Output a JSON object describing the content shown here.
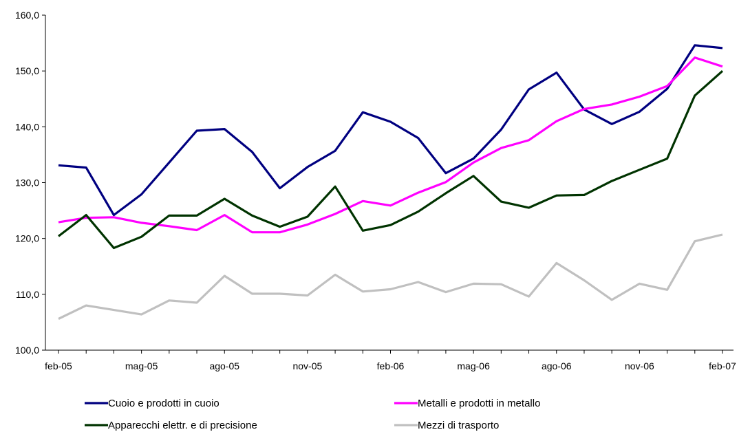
{
  "chart_data": {
    "type": "line",
    "title": "",
    "xlabel": "",
    "ylabel": "",
    "ylim": [
      100,
      160
    ],
    "yticks": [
      "100,0",
      "110,0",
      "120,0",
      "130,0",
      "140,0",
      "150,0",
      "160,0"
    ],
    "grid": false,
    "legend_position": "bottom",
    "x": [
      "feb-05",
      "mar-05",
      "apr-05",
      "mag-05",
      "giu-05",
      "lug-05",
      "ago-05",
      "set-05",
      "ott-05",
      "nov-05",
      "dic-05",
      "gen-06",
      "feb-06",
      "mar-06",
      "apr-06",
      "mag-06",
      "giu-06",
      "lug-06",
      "ago-06",
      "set-06",
      "ott-06",
      "nov-06",
      "dic-06",
      "gen-07",
      "feb-07"
    ],
    "xtick_labels": [
      "feb-05",
      "mag-05",
      "ago-05",
      "nov-05",
      "feb-06",
      "mag-06",
      "ago-06",
      "nov-06",
      "feb-07"
    ],
    "series": [
      {
        "name": "Cuoio e prodotti in cuoio",
        "color": "#000080",
        "values": [
          133.1,
          132.7,
          124.2,
          127.9,
          133.6,
          139.3,
          139.6,
          135.5,
          129.0,
          132.8,
          135.7,
          142.6,
          140.9,
          138.0,
          131.7,
          134.3,
          139.5,
          146.7,
          149.7,
          143.1,
          140.5,
          142.7,
          146.8,
          154.6,
          154.1
        ]
      },
      {
        "name": "Metalli e prodotti in metallo",
        "color": "#FF00FF",
        "values": [
          122.9,
          123.7,
          123.8,
          122.8,
          122.2,
          121.5,
          124.2,
          121.1,
          121.1,
          122.5,
          124.4,
          126.7,
          125.9,
          128.2,
          130.1,
          133.6,
          136.2,
          137.6,
          141.0,
          143.2,
          144.0,
          145.4,
          147.3,
          152.4,
          150.8
        ]
      },
      {
        "name": "Apparecchi elettr. e di precisione",
        "color": "#003300",
        "values": [
          120.4,
          124.2,
          118.3,
          120.3,
          124.1,
          124.1,
          127.1,
          124.1,
          122.1,
          123.9,
          129.3,
          121.4,
          122.4,
          124.8,
          128.1,
          131.2,
          126.6,
          125.5,
          127.7,
          127.8,
          130.3,
          132.3,
          134.3,
          145.6,
          150.0
        ]
      },
      {
        "name": "Mezzi di trasporto",
        "color": "#C0C0C0",
        "values": [
          105.6,
          108.0,
          107.2,
          106.4,
          108.9,
          108.5,
          113.3,
          110.1,
          110.1,
          109.8,
          113.5,
          110.5,
          110.9,
          112.2,
          110.4,
          111.9,
          111.8,
          109.6,
          115.6,
          112.5,
          109.0,
          111.9,
          110.8,
          119.5,
          120.7
        ]
      }
    ]
  }
}
